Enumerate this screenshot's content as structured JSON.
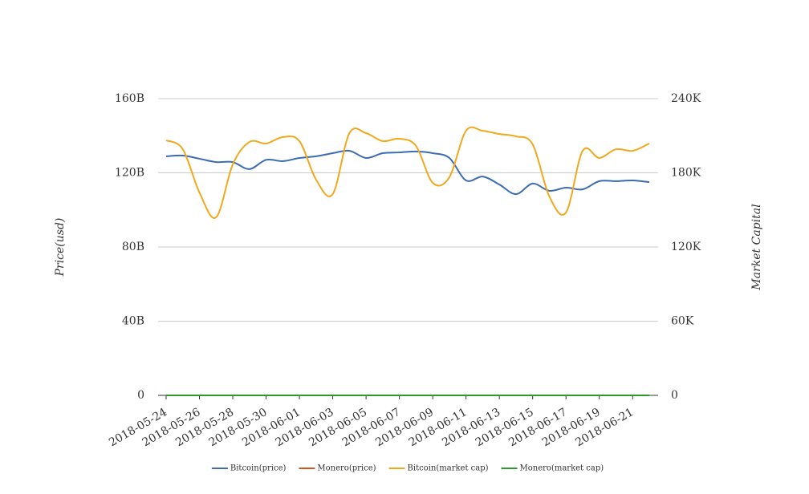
{
  "chart_data": {
    "type": "line",
    "x": [
      "2018-05-24",
      null,
      "2018-05-26",
      null,
      "2018-05-28",
      null,
      "2018-05-30",
      null,
      "2018-06-01",
      null,
      "2018-06-03",
      null,
      "2018-06-05",
      null,
      "2018-06-07",
      null,
      "2018-06-09",
      null,
      "2018-06-11",
      null,
      "2018-06-13",
      null,
      "2018-06-15",
      null,
      "2018-06-17",
      null,
      "2018-06-19",
      null,
      "2018-06-21",
      null
    ],
    "series": [
      {
        "name": "Bitcoin(price)",
        "color": "#3b6cb3",
        "axis": "y",
        "values": [
          128900000000,
          129300000000,
          127600000000,
          125800000000,
          125800000000,
          122000000000,
          127000000000,
          126300000000,
          128000000000,
          128900000000,
          130600000000,
          131900000000,
          128000000000,
          130600000000,
          131000000000,
          131500000000,
          130600000000,
          128000000000,
          115900000000,
          118000000000,
          113700000000,
          108500000000,
          114200000000,
          110300000000,
          112000000000,
          111100000000,
          115500000000,
          115500000000,
          115900000000,
          115000000000
        ]
      },
      {
        "name": "Monero(price)",
        "color": "#d8541e",
        "axis": "y",
        "values": [
          0,
          0,
          0,
          0,
          0,
          0,
          0,
          0,
          0,
          0,
          0,
          0,
          0,
          0,
          0,
          0,
          0,
          0,
          0,
          0,
          0,
          0,
          0,
          0,
          0,
          0,
          0,
          0,
          0,
          0
        ]
      },
      {
        "name": "Bitcoin(market cap)",
        "color": "#f1a81d",
        "axis": "y2",
        "values": [
          206300,
          199100,
          164100,
          144000,
          186800,
          205000,
          203700,
          208900,
          205600,
          174500,
          162800,
          212100,
          212100,
          205600,
          207600,
          201700,
          171900,
          176400,
          214000,
          214000,
          211400,
          209500,
          203000,
          160900,
          147900,
          197800,
          192000,
          199100,
          197800,
          203700
        ]
      },
      {
        "name": "Monero(market cap)",
        "color": "#2e9a2a",
        "axis": "y2",
        "values": [
          0,
          0,
          0,
          0,
          0,
          0,
          0,
          0,
          0,
          0,
          0,
          0,
          0,
          0,
          0,
          0,
          0,
          0,
          0,
          0,
          0,
          0,
          0,
          0,
          0,
          0,
          0,
          0,
          0,
          0
        ]
      }
    ],
    "ylabel": "Price(usd)",
    "y2label": "Market Capital",
    "ylim": [
      0,
      160000000000
    ],
    "yticks": [
      0,
      {
        "value": 40000000000,
        "label": "40B"
      },
      {
        "value": 80000000000,
        "label": "80B"
      },
      {
        "value": 120000000000,
        "label": "120B"
      },
      {
        "value": 160000000000,
        "label": "160B"
      }
    ],
    "y2lim": [
      0,
      240000
    ],
    "y2ticks": [
      0,
      {
        "value": 60000,
        "label": "60K"
      },
      {
        "value": 120000,
        "label": "120K"
      },
      {
        "value": 180000,
        "label": "180K"
      },
      {
        "value": 240000,
        "label": "240K"
      }
    ],
    "grid": true,
    "legend": "bottom"
  }
}
